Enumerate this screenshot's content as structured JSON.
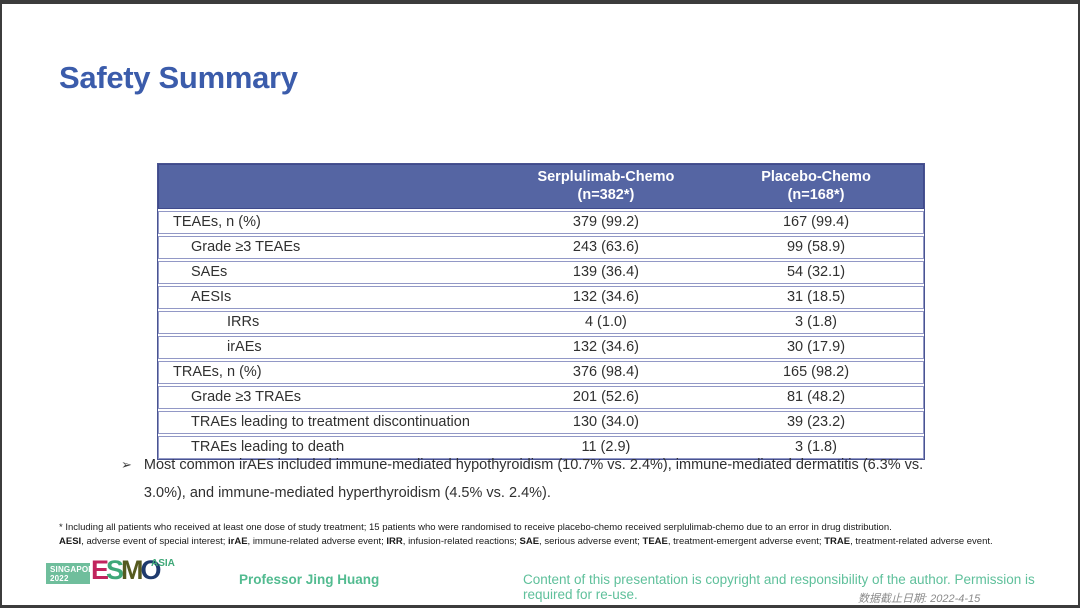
{
  "title": "Safety Summary",
  "table": {
    "columns": [
      {
        "line1": "Serplulimab-Chemo",
        "line2": "(n=382*)"
      },
      {
        "line1": "Placebo-Chemo",
        "line2": "(n=168*)"
      }
    ],
    "rows": [
      {
        "label": "TEAEs, n (%)",
        "indent": 0,
        "serplulimab": "379 (99.2)",
        "placebo": "167 (99.4)"
      },
      {
        "label": "Grade ≥3 TEAEs",
        "indent": 1,
        "serplulimab": "243 (63.6)",
        "placebo": "99 (58.9)"
      },
      {
        "label": "SAEs",
        "indent": 1,
        "serplulimab": "139 (36.4)",
        "placebo": "54 (32.1)"
      },
      {
        "label": "AESIs",
        "indent": 1,
        "serplulimab": "132 (34.6)",
        "placebo": "31 (18.5)"
      },
      {
        "label": "IRRs",
        "indent": 2,
        "serplulimab": "4 (1.0)",
        "placebo": "3 (1.8)"
      },
      {
        "label": "irAEs",
        "indent": 2,
        "serplulimab": "132 (34.6)",
        "placebo": "30 (17.9)"
      },
      {
        "label": "TRAEs, n (%)",
        "indent": 0,
        "serplulimab": "376 (98.4)",
        "placebo": "165 (98.2)"
      },
      {
        "label": "Grade ≥3 TRAEs",
        "indent": 1,
        "serplulimab": "201 (52.6)",
        "placebo": "81 (48.2)"
      },
      {
        "label": "TRAEs leading to treatment discontinuation",
        "indent": 1,
        "serplulimab": "130 (34.0)",
        "placebo": "39 (23.2)"
      },
      {
        "label": "TRAEs leading to death",
        "indent": 1,
        "serplulimab": "11 (2.9)",
        "placebo": "3 (1.8)"
      }
    ]
  },
  "bullet": {
    "marker": "➢",
    "text": "Most common irAEs included immune-mediated hypothyroidism (10.7% vs. 2.4%), immune-mediated dermatitis (6.3% vs. 3.0%), and immune-mediated hyperthyroidism (4.5% vs. 2.4%)."
  },
  "footnotes": {
    "line1": "* Including all patients who received at least one dose of study treatment; 15 patients who were randomised to receive placebo-chemo received serplulimab-chemo due to an error in drug distribution.",
    "abbreviations": [
      {
        "term": "AESI",
        "definition": ", adverse event of special interest; "
      },
      {
        "term": "irAE",
        "definition": ", immune-related adverse event; "
      },
      {
        "term": "IRR",
        "definition": ", infusion-related reactions; "
      },
      {
        "term": "SAE",
        "definition": ", serious adverse event; "
      },
      {
        "term": "TEAE",
        "definition": ", treatment-emergent adverse event; "
      },
      {
        "term": "TRAE",
        "definition": ", treatment-related adverse event."
      }
    ]
  },
  "footer": {
    "logo": {
      "venue_line1": "SINGAPORE",
      "venue_line2": "2022",
      "letters": [
        "E",
        "S",
        "M",
        "O"
      ],
      "region": "ASIA"
    },
    "presenter": "Professor Jing Huang",
    "copyright": "Content of this presentation is copyright and responsibility of the author. Permission is required for re-use.",
    "data_cutoff": "数据截止日期: 2022-4-15"
  },
  "colors": {
    "title_blue": "#3b5cab",
    "table_header_bg": "#5565a3",
    "table_row_border": "#9298c6",
    "footer_green": "#52bb90",
    "copyright_green": "#5fc09b",
    "logo_box_green": "#6fbe9c",
    "logo_e": "#c1245d",
    "logo_s": "#3fa878",
    "logo_m": "#555a1f",
    "logo_o": "#1e3a6d",
    "cutoff_gray": "#8a8a8a"
  }
}
